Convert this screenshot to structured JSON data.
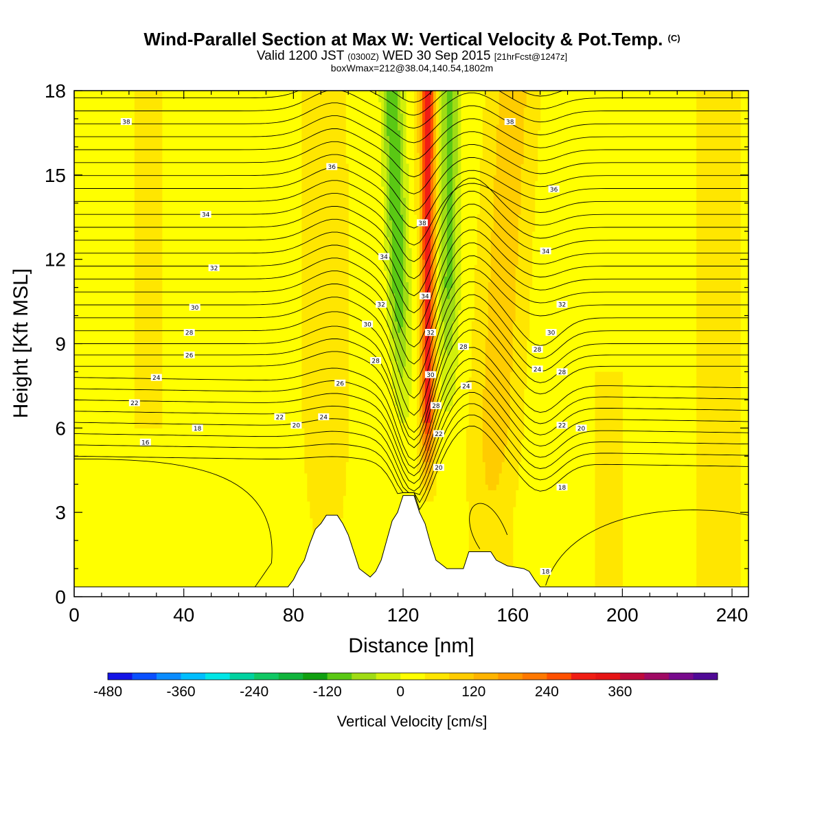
{
  "title": {
    "main": "Wind-Parallel Section at Max W: Vertical Velocity & Pot.Temp.",
    "tag": "(C)",
    "sub_prefix": "Valid 1200 JST",
    "sub_utc": "(0300Z)",
    "sub_date": "WED 30 Sep 2015",
    "sub_fcst": "[21hrFcst@1247z]",
    "box": "boxWmax=212@38.04,140.54,1802m"
  },
  "chart_data": {
    "type": "heatmap",
    "xlabel": "Distance [nm]",
    "ylabel": "Height [Kft MSL]",
    "xlim": [
      0,
      246
    ],
    "ylim": [
      0,
      18
    ],
    "x_ticks": [
      "0",
      "40",
      "80",
      "120",
      "160",
      "200",
      "240"
    ],
    "y_ticks": [
      "0",
      "3",
      "6",
      "9",
      "12",
      "15",
      "18"
    ],
    "colorbar": {
      "title": "Vertical Velocity [cm/s]",
      "tick_labels": [
        "-480",
        "-360",
        "-240",
        "-120",
        "0",
        "120",
        "240",
        "360"
      ],
      "colors": [
        "#1414e6",
        "#0a50ff",
        "#0a8cff",
        "#00beff",
        "#00e6e6",
        "#00d2a0",
        "#10c864",
        "#10b43c",
        "#10a010",
        "#5ac814",
        "#a0dc14",
        "#d2f00a",
        "#ffff00",
        "#ffe600",
        "#ffcc00",
        "#ffb400",
        "#ff9600",
        "#ff7800",
        "#ff5000",
        "#f01e14",
        "#e61414",
        "#be0a3c",
        "#a00a64",
        "#780a8c",
        "#500a96"
      ]
    },
    "terrain": [
      [
        0,
        0.35
      ],
      [
        78,
        0.35
      ],
      [
        80,
        0.6
      ],
      [
        82,
        1.0
      ],
      [
        84,
        1.3
      ],
      [
        86,
        1.9
      ],
      [
        88,
        2.4
      ],
      [
        90,
        2.6
      ],
      [
        92,
        2.9
      ],
      [
        96,
        2.9
      ],
      [
        98,
        2.6
      ],
      [
        100,
        2.2
      ],
      [
        102,
        1.6
      ],
      [
        104,
        1.0
      ],
      [
        108,
        0.7
      ],
      [
        110,
        0.9
      ],
      [
        112,
        1.3
      ],
      [
        114,
        2.0
      ],
      [
        116,
        2.7
      ],
      [
        118,
        3.0
      ],
      [
        120,
        3.6
      ],
      [
        124,
        3.6
      ],
      [
        126,
        3.0
      ],
      [
        128,
        2.6
      ],
      [
        130,
        1.9
      ],
      [
        132,
        1.3
      ],
      [
        136,
        1.0
      ],
      [
        142,
        1.0
      ],
      [
        144,
        1.6
      ],
      [
        152,
        1.6
      ],
      [
        154,
        1.3
      ],
      [
        158,
        1.1
      ],
      [
        164,
        1.0
      ],
      [
        166,
        0.9
      ],
      [
        168,
        0.6
      ],
      [
        170,
        0.35
      ],
      [
        246,
        0.35
      ]
    ],
    "updraft_core": {
      "x_bottom": 129,
      "x_top": 129,
      "peak_cm_s": 300
    },
    "shading_zones": [
      {
        "name": "downdraft-west",
        "x_bottom": 121,
        "x_top": 116,
        "min_cm_s": -150
      },
      {
        "name": "downdraft-east",
        "x_bottom": 136,
        "x_top": 137,
        "min_cm_s": -120
      },
      {
        "name": "updraft-west-ridge",
        "x_bottom": 92,
        "x_top": 91,
        "max_cm_s": 40
      },
      {
        "name": "updraft-east-ridge",
        "x_bottom": 152,
        "x_top": 160,
        "max_cm_s": 80
      }
    ],
    "pot_temp_contours": [
      16,
      18,
      20,
      22,
      24,
      26,
      28,
      30,
      32,
      34,
      36,
      38
    ],
    "contour_labels": [
      {
        "text": "38",
        "x": 19,
        "y": 16.9
      },
      {
        "text": "36",
        "x": 94,
        "y": 15.3
      },
      {
        "text": "34",
        "x": 48,
        "y": 13.6
      },
      {
        "text": "32",
        "x": 51,
        "y": 11.7
      },
      {
        "text": "30",
        "x": 44,
        "y": 10.3
      },
      {
        "text": "28",
        "x": 42,
        "y": 9.4
      },
      {
        "text": "26",
        "x": 42,
        "y": 8.6
      },
      {
        "text": "24",
        "x": 30,
        "y": 7.8
      },
      {
        "text": "22",
        "x": 22,
        "y": 6.9
      },
      {
        "text": "22",
        "x": 75,
        "y": 6.4
      },
      {
        "text": "24",
        "x": 91,
        "y": 6.4
      },
      {
        "text": "20",
        "x": 81,
        "y": 6.1
      },
      {
        "text": "18",
        "x": 45,
        "y": 6.0
      },
      {
        "text": "16",
        "x": 26,
        "y": 5.5
      },
      {
        "text": "26",
        "x": 97,
        "y": 7.6
      },
      {
        "text": "28",
        "x": 110,
        "y": 8.4
      },
      {
        "text": "30",
        "x": 107,
        "y": 9.7
      },
      {
        "text": "32",
        "x": 112,
        "y": 10.4
      },
      {
        "text": "34",
        "x": 113,
        "y": 12.1
      },
      {
        "text": "38",
        "x": 127,
        "y": 13.3
      },
      {
        "text": "34",
        "x": 128,
        "y": 10.7
      },
      {
        "text": "32",
        "x": 130,
        "y": 9.4
      },
      {
        "text": "30",
        "x": 130,
        "y": 7.9
      },
      {
        "text": "28",
        "x": 132,
        "y": 6.8
      },
      {
        "text": "22",
        "x": 133,
        "y": 5.8
      },
      {
        "text": "20",
        "x": 133,
        "y": 4.6
      },
      {
        "text": "28",
        "x": 142,
        "y": 8.9
      },
      {
        "text": "24",
        "x": 143,
        "y": 7.5
      },
      {
        "text": "38",
        "x": 159,
        "y": 16.9
      },
      {
        "text": "36",
        "x": 175,
        "y": 14.5
      },
      {
        "text": "34",
        "x": 172,
        "y": 12.3
      },
      {
        "text": "32",
        "x": 178,
        "y": 10.4
      },
      {
        "text": "30",
        "x": 174,
        "y": 9.4
      },
      {
        "text": "28",
        "x": 169,
        "y": 8.8
      },
      {
        "text": "24",
        "x": 169,
        "y": 8.1
      },
      {
        "text": "28",
        "x": 178,
        "y": 8.0
      },
      {
        "text": "22",
        "x": 178,
        "y": 6.1
      },
      {
        "text": "20",
        "x": 185,
        "y": 6.0
      },
      {
        "text": "18",
        "x": 178,
        "y": 3.9
      },
      {
        "text": "18",
        "x": 172,
        "y": 0.9
      }
    ]
  }
}
